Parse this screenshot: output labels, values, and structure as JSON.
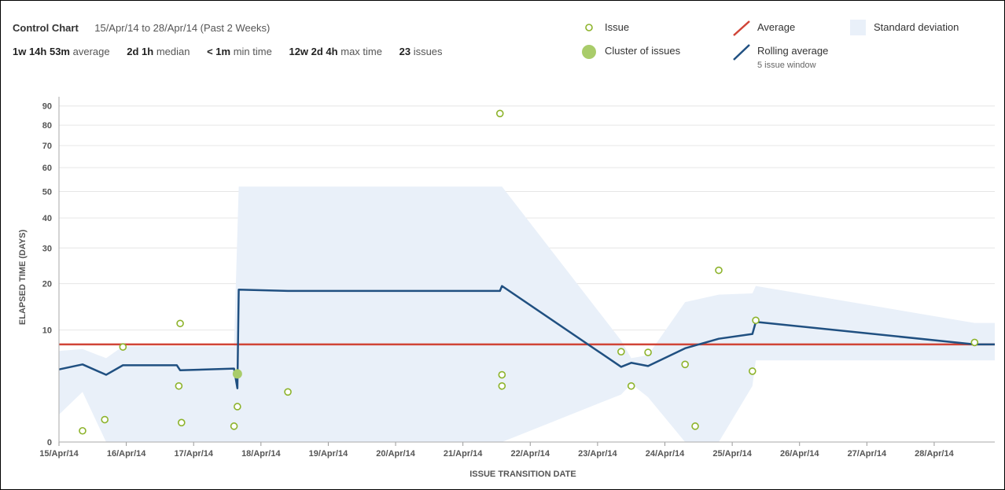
{
  "header": {
    "title": "Control Chart",
    "range": "15/Apr/14 to 28/Apr/14 (Past 2 Weeks)"
  },
  "stats": [
    {
      "value": "1w 14h 53m",
      "label": "average"
    },
    {
      "value": "2d 1h",
      "label": "median"
    },
    {
      "value": "< 1m",
      "label": "min time"
    },
    {
      "value": "12w 2d 4h",
      "label": "max time"
    },
    {
      "value": "23",
      "label": "issues"
    }
  ],
  "legend": {
    "issue": "Issue",
    "cluster": "Cluster of issues",
    "average": "Average",
    "rolling": "Rolling average",
    "rolling_sub": "5 issue window",
    "stddev": "Standard deviation"
  },
  "colors": {
    "issue": "#8db32b",
    "cluster": "#a9cc6a",
    "average": "#d04437",
    "rolling": "#205081",
    "stddev": "#e9f0f9"
  },
  "chart_data": {
    "type": "scatter",
    "xlabel": "ISSUE TRANSITION DATE",
    "ylabel": "ELAPSED TIME (DAYS)",
    "x_ticks": [
      "15/Apr/14",
      "16/Apr/14",
      "17/Apr/14",
      "18/Apr/14",
      "19/Apr/14",
      "20/Apr/14",
      "21/Apr/14",
      "22/Apr/14",
      "23/Apr/14",
      "24/Apr/14",
      "25/Apr/14",
      "26/Apr/14",
      "27/Apr/14",
      "28/Apr/14"
    ],
    "y_ticks": [
      0,
      10,
      20,
      30,
      40,
      50,
      60,
      70,
      80,
      90
    ],
    "y_scale": "sqrt",
    "x_range": [
      0,
      13.9
    ],
    "y_range": [
      0,
      95
    ],
    "average": 7.6,
    "issues": [
      {
        "x": 0.35,
        "y": 0.1
      },
      {
        "x": 0.68,
        "y": 0.4
      },
      {
        "x": 0.95,
        "y": 7.2
      },
      {
        "x": 1.8,
        "y": 11.2
      },
      {
        "x": 1.78,
        "y": 2.5
      },
      {
        "x": 1.82,
        "y": 0.3
      },
      {
        "x": 2.6,
        "y": 0.2
      },
      {
        "x": 2.65,
        "y": 1.0
      },
      {
        "x": 3.4,
        "y": 2.0
      },
      {
        "x": 6.55,
        "y": 86
      },
      {
        "x": 6.58,
        "y": 3.6
      },
      {
        "x": 6.58,
        "y": 2.5
      },
      {
        "x": 8.35,
        "y": 6.5
      },
      {
        "x": 8.5,
        "y": 2.5
      },
      {
        "x": 8.75,
        "y": 6.4
      },
      {
        "x": 9.3,
        "y": 4.8
      },
      {
        "x": 9.45,
        "y": 0.2
      },
      {
        "x": 9.8,
        "y": 23.5
      },
      {
        "x": 10.3,
        "y": 4.0
      },
      {
        "x": 10.35,
        "y": 11.8
      },
      {
        "x": 13.6,
        "y": 7.9
      }
    ],
    "clusters": [
      {
        "x": 2.65,
        "y": 3.7
      }
    ],
    "rolling_average": [
      [
        0.0,
        4.2
      ],
      [
        0.35,
        4.8
      ],
      [
        0.7,
        3.6
      ],
      [
        0.95,
        4.7
      ],
      [
        1.75,
        4.7
      ],
      [
        1.8,
        4.1
      ],
      [
        2.6,
        4.3
      ],
      [
        2.65,
        2.3
      ],
      [
        2.67,
        18.5
      ],
      [
        3.4,
        18.2
      ],
      [
        6.55,
        18.2
      ],
      [
        6.58,
        19.4
      ],
      [
        8.35,
        4.5
      ],
      [
        8.5,
        5.0
      ],
      [
        8.75,
        4.6
      ],
      [
        9.3,
        7.0
      ],
      [
        9.8,
        8.5
      ],
      [
        10.3,
        9.3
      ],
      [
        10.35,
        11.5
      ],
      [
        13.6,
        7.6
      ],
      [
        13.9,
        7.6
      ]
    ],
    "stddev_upper": [
      [
        0.0,
        6.6
      ],
      [
        0.35,
        6.9
      ],
      [
        0.7,
        5.6
      ],
      [
        0.95,
        7.3
      ],
      [
        1.75,
        7.3
      ],
      [
        2.6,
        7.3
      ],
      [
        2.67,
        52
      ],
      [
        6.58,
        52
      ],
      [
        8.35,
        8.2
      ],
      [
        8.5,
        5.6
      ],
      [
        8.75,
        6.0
      ],
      [
        9.3,
        15.6
      ],
      [
        9.8,
        17.3
      ],
      [
        10.3,
        17.6
      ],
      [
        10.35,
        19.4
      ],
      [
        13.6,
        11.3
      ],
      [
        13.9,
        11.3
      ]
    ],
    "stddev_lower": [
      [
        0.0,
        0.6
      ],
      [
        0.35,
        2.0
      ],
      [
        0.7,
        0
      ],
      [
        0.95,
        0
      ],
      [
        1.75,
        0
      ],
      [
        2.6,
        0
      ],
      [
        2.67,
        0
      ],
      [
        6.58,
        0
      ],
      [
        8.35,
        1.8
      ],
      [
        8.5,
        2.7
      ],
      [
        8.75,
        1.6
      ],
      [
        9.3,
        0
      ],
      [
        9.8,
        0
      ],
      [
        10.3,
        2.5
      ],
      [
        10.35,
        5.3
      ],
      [
        13.6,
        5.3
      ],
      [
        13.9,
        5.3
      ]
    ]
  }
}
